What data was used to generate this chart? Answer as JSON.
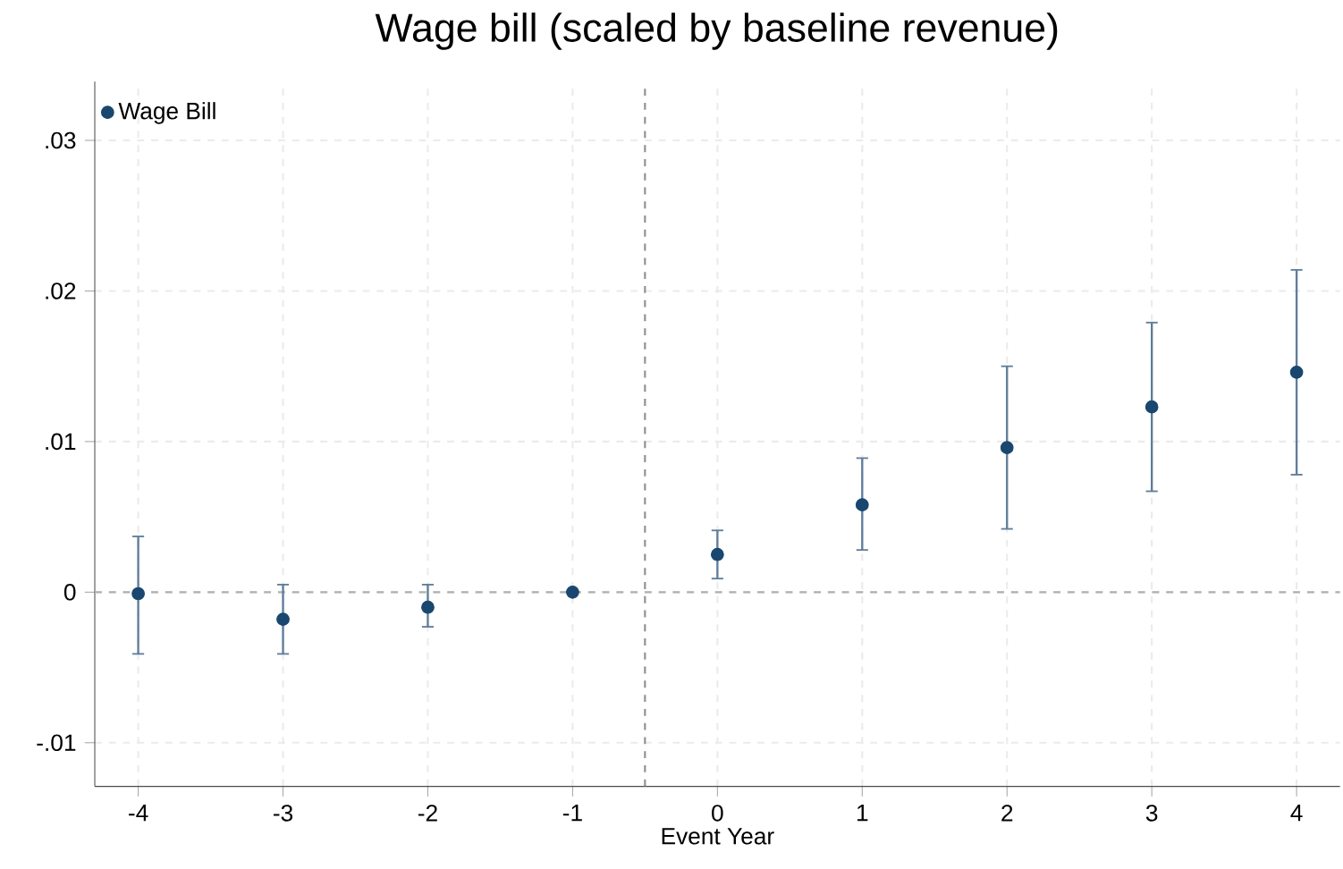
{
  "chart_data": {
    "type": "scatter",
    "title": "Wage bill (scaled by baseline revenue)",
    "xlabel": "Event Year",
    "x": [
      -4,
      -3,
      -2,
      -1,
      0,
      1,
      2,
      3,
      4
    ],
    "series": [
      {
        "name": "Wage Bill",
        "color": "#1a476f",
        "values": [
          -0.0001,
          -0.0018,
          -0.001,
          0,
          0.0025,
          0.0058,
          0.0096,
          0.0123,
          0.0146
        ],
        "errors": [
          [
            -0.0041,
            0.0037
          ],
          [
            -0.0041,
            0.0005
          ],
          [
            -0.0023,
            0.0005
          ],
          null,
          [
            0.0009,
            0.0041
          ],
          [
            0.0028,
            0.0089
          ],
          [
            0.0042,
            0.015
          ],
          [
            0.0067,
            0.0179
          ],
          [
            0.0078,
            0.0214
          ]
        ]
      }
    ],
    "xlim": [
      -4.3,
      4.3
    ],
    "ylim": [
      -0.0129,
      0.0339
    ],
    "xticks": [
      -4,
      -3,
      -2,
      -1,
      0,
      1,
      2,
      3,
      4
    ],
    "yticks": [
      {
        "value": -0.01,
        "label": "-.01"
      },
      {
        "value": 0,
        "label": "0"
      },
      {
        "value": 0.01,
        "label": ".01"
      },
      {
        "value": 0.02,
        "label": ".02"
      },
      {
        "value": 0.03,
        "label": ".03"
      }
    ],
    "ref_lines": [
      {
        "axis": "y",
        "value": 0,
        "color": "#b0b0b0",
        "line_style": "dashed"
      },
      {
        "axis": "x",
        "value": -0.5,
        "color": "#909090",
        "line_style": "dashed"
      }
    ],
    "grid": true,
    "legend": "top left",
    "marker": "circle"
  }
}
